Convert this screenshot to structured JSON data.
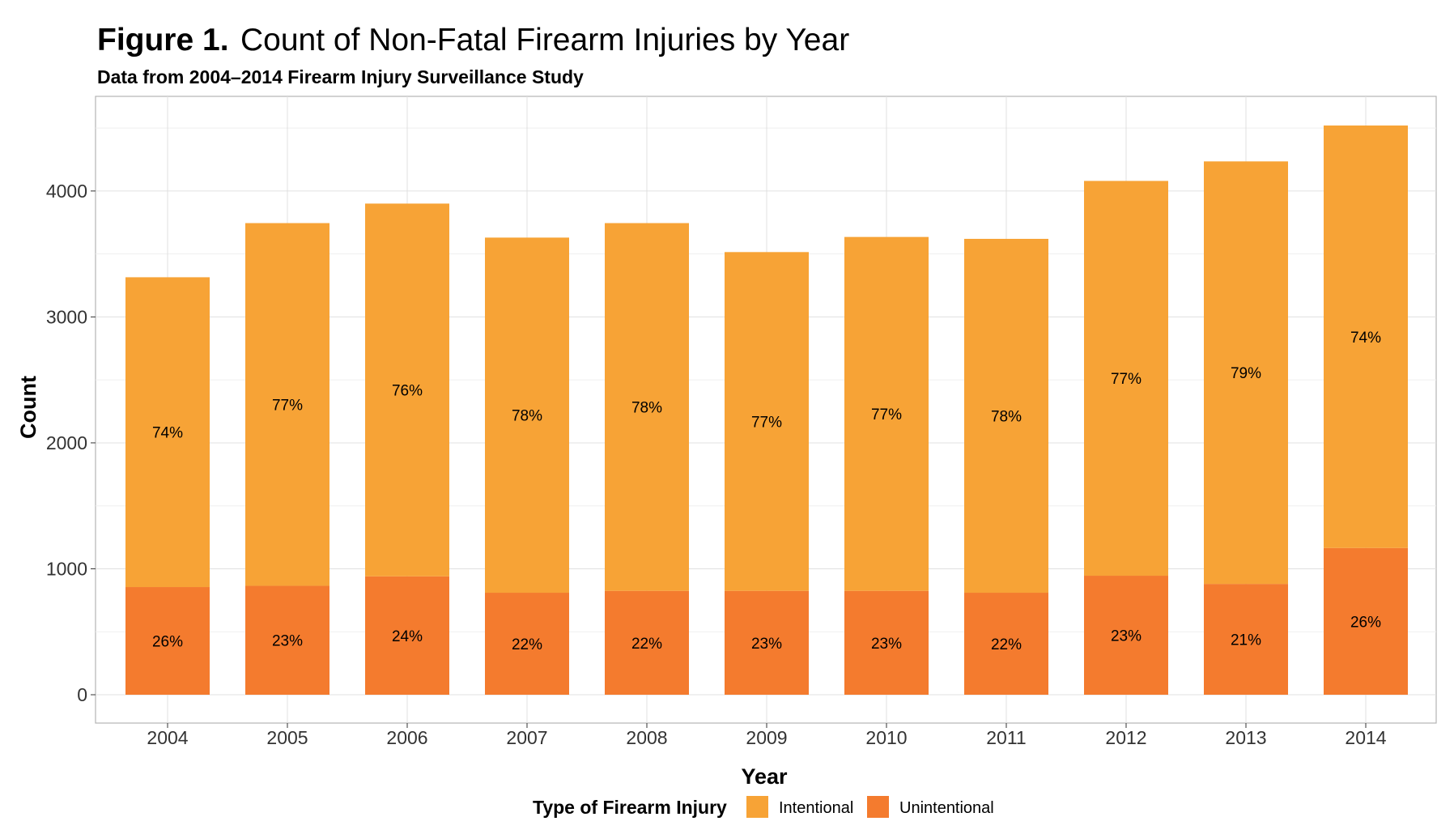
{
  "chart_data": {
    "type": "bar",
    "stacked": true,
    "title_bold": "Figure 1.",
    "title_rest": "Count of Non-Fatal Firearm Injuries by Year",
    "subtitle": "Data from 2004–2014 Firearm Injury Surveillance Study",
    "xlabel": "Year",
    "ylabel": "Count",
    "ylim": [
      0,
      4700
    ],
    "yticks": [
      0,
      1000,
      2000,
      3000,
      4000
    ],
    "grid": true,
    "legend_position": "bottom",
    "legend_title": "Type of Firearm Injury",
    "categories": [
      "2004",
      "2005",
      "2006",
      "2007",
      "2008",
      "2009",
      "2010",
      "2011",
      "2012",
      "2013",
      "2014"
    ],
    "series": [
      {
        "name": "Unintentional",
        "color": "#f47b2e",
        "values": [
          855,
          865,
          940,
          810,
          825,
          825,
          825,
          810,
          945,
          880,
          1165
        ],
        "labels": [
          "26%",
          "23%",
          "24%",
          "22%",
          "22%",
          "23%",
          "23%",
          "22%",
          "23%",
          "21%",
          "26%"
        ]
      },
      {
        "name": "Intentional",
        "color": "#f7a336",
        "values": [
          2460,
          2880,
          2960,
          2820,
          2920,
          2690,
          2810,
          2810,
          3135,
          3355,
          3355
        ],
        "labels": [
          "74%",
          "77%",
          "76%",
          "78%",
          "78%",
          "77%",
          "77%",
          "78%",
          "77%",
          "79%",
          "74%"
        ]
      }
    ]
  }
}
